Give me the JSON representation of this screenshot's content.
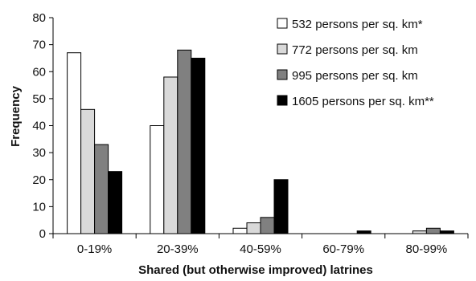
{
  "chart_data": {
    "type": "bar",
    "title": "",
    "xlabel": "Shared (but otherwise improved) latrines",
    "ylabel": "Frequency",
    "ylim": [
      0,
      80
    ],
    "yticks": [
      0,
      10,
      20,
      30,
      40,
      50,
      60,
      70,
      80
    ],
    "grid": false,
    "legend_position": "top-right",
    "categories": [
      "0-19%",
      "20-39%",
      "40-59%",
      "60-79%",
      "80-99%"
    ],
    "series": [
      {
        "name": "532 persons per sq. km*",
        "color": "#ffffff",
        "values": [
          67,
          40,
          2,
          0,
          0
        ]
      },
      {
        "name": "772 persons per sq. km",
        "color": "#d9d9d9",
        "values": [
          46,
          58,
          4,
          0,
          1
        ]
      },
      {
        "name": "995 persons per sq. km",
        "color": "#808080",
        "values": [
          33,
          68,
          6,
          0,
          2
        ]
      },
      {
        "name": "1605 persons per sq. km**",
        "color": "#000000",
        "values": [
          23,
          65,
          20,
          1,
          1
        ]
      }
    ]
  }
}
